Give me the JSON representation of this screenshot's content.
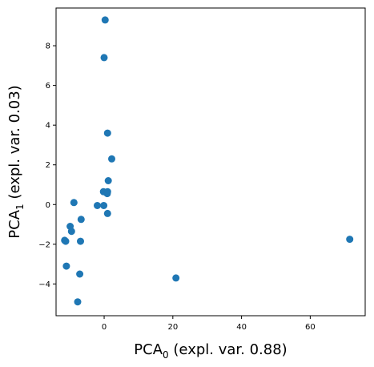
{
  "chart_data": {
    "type": "scatter",
    "title": "",
    "xlabel": {
      "base": "PCA",
      "sub": "0",
      "rest": " (expl. var. 0.88)"
    },
    "ylabel": {
      "base": "PCA",
      "sub": "1",
      "rest": " (expl. var. 0.03)"
    },
    "xlim": [
      -14,
      76
    ],
    "ylim": [
      -5.6,
      9.9
    ],
    "xticks": [
      0,
      20,
      40,
      60
    ],
    "yticks": [
      -4,
      -2,
      0,
      2,
      4,
      6,
      8
    ],
    "xtick_labels": [
      "0",
      "20",
      "40",
      "60"
    ],
    "ytick_labels": [
      "−4",
      "−2",
      "0",
      "2",
      "4",
      "6",
      "8"
    ],
    "grid": false,
    "point_color": "#1f77b4",
    "points": [
      {
        "x": 0.3,
        "y": 9.3
      },
      {
        "x": 0.0,
        "y": 7.4
      },
      {
        "x": 1.0,
        "y": 3.6
      },
      {
        "x": 2.2,
        "y": 2.3
      },
      {
        "x": 1.2,
        "y": 1.2
      },
      {
        "x": -0.2,
        "y": 0.65
      },
      {
        "x": 1.0,
        "y": 0.65
      },
      {
        "x": 0.9,
        "y": 0.55
      },
      {
        "x": -2.0,
        "y": -0.05
      },
      {
        "x": -0.1,
        "y": -0.05
      },
      {
        "x": 1.0,
        "y": -0.45
      },
      {
        "x": -8.8,
        "y": 0.1
      },
      {
        "x": -6.7,
        "y": -0.75
      },
      {
        "x": -9.9,
        "y": -1.1
      },
      {
        "x": -9.5,
        "y": -1.35
      },
      {
        "x": -11.5,
        "y": -1.8
      },
      {
        "x": -11.2,
        "y": -1.85
      },
      {
        "x": -6.9,
        "y": -1.85
      },
      {
        "x": -11.0,
        "y": -3.1
      },
      {
        "x": -7.1,
        "y": -3.5
      },
      {
        "x": -7.7,
        "y": -4.9
      },
      {
        "x": 20.9,
        "y": -3.7
      },
      {
        "x": 71.5,
        "y": -1.75
      }
    ]
  }
}
